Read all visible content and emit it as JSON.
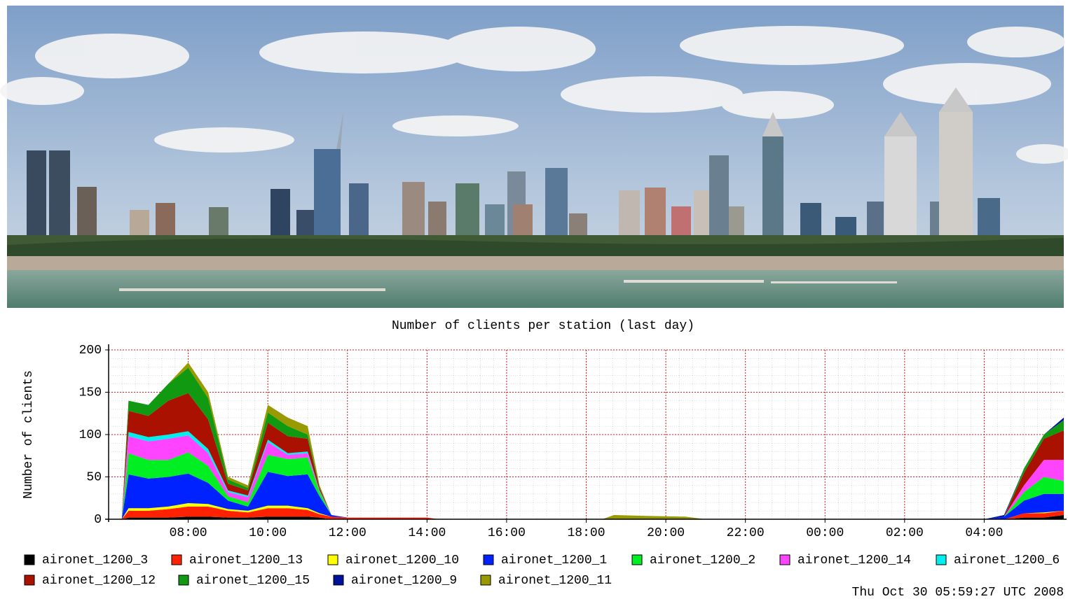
{
  "chart_data": {
    "type": "stacked-area",
    "title": "Number of clients per station (last day)",
    "y_label": "Number of clients",
    "timestamp": "Thu Oct 30 05:59:27 UTC 2008",
    "grid": true,
    "xlim": [
      6,
      30
    ],
    "ylim": [
      0,
      200
    ],
    "yticks": [
      0,
      50,
      100,
      150,
      200
    ],
    "xticks": [
      {
        "value": 8,
        "label": "08:00"
      },
      {
        "value": 10,
        "label": "10:00"
      },
      {
        "value": 12,
        "label": "12:00"
      },
      {
        "value": 14,
        "label": "14:00"
      },
      {
        "value": 16,
        "label": "16:00"
      },
      {
        "value": 18,
        "label": "18:00"
      },
      {
        "value": 20,
        "label": "20:00"
      },
      {
        "value": 22,
        "label": "22:00"
      },
      {
        "value": 24,
        "label": "00:00"
      },
      {
        "value": 26,
        "label": "02:00"
      },
      {
        "value": 28,
        "label": "04:00"
      }
    ],
    "x": [
      6.33,
      6.5,
      7,
      7.5,
      8,
      8.5,
      9,
      9.5,
      10,
      10.5,
      11,
      11.3,
      11.6,
      12,
      14,
      14.3,
      18.4,
      18.7,
      19.5,
      20.5,
      21,
      28,
      28.5,
      29,
      29.5,
      30
    ],
    "series": [
      {
        "name": "aironet_1200_3",
        "color": "#000000",
        "values": [
          0,
          2,
          2,
          2,
          3,
          3,
          2,
          2,
          3,
          3,
          3,
          2,
          0,
          0,
          0,
          0,
          0,
          0,
          0,
          0,
          0,
          0,
          0,
          2,
          2,
          5
        ]
      },
      {
        "name": "aironet_1200_13",
        "color": "#ff2200",
        "values": [
          0,
          8,
          8,
          10,
          12,
          12,
          8,
          6,
          10,
          10,
          8,
          4,
          3,
          2,
          2,
          0,
          0,
          0,
          0,
          0,
          0,
          0,
          0,
          5,
          5,
          5
        ]
      },
      {
        "name": "aironet_1200_10",
        "color": "#ffff00",
        "values": [
          0,
          3,
          3,
          3,
          4,
          3,
          2,
          2,
          3,
          3,
          2,
          1,
          0,
          0,
          0,
          0,
          0,
          0,
          0,
          0,
          0,
          0,
          0,
          0,
          1,
          0
        ]
      },
      {
        "name": "aironet_1200_1",
        "color": "#0022ff",
        "values": [
          0,
          40,
          35,
          35,
          35,
          25,
          10,
          5,
          40,
          35,
          40,
          20,
          2,
          0,
          0,
          0,
          0,
          0,
          0,
          0,
          0,
          0,
          3,
          15,
          22,
          20
        ]
      },
      {
        "name": "aironet_1200_2",
        "color": "#00ee22",
        "values": [
          0,
          25,
          22,
          20,
          25,
          20,
          5,
          5,
          20,
          20,
          20,
          5,
          0,
          0,
          0,
          0,
          0,
          0,
          0,
          0,
          0,
          0,
          0,
          10,
          20,
          15
        ]
      },
      {
        "name": "aironet_1200_14",
        "color": "#ff44ff",
        "values": [
          0,
          20,
          22,
          25,
          20,
          15,
          5,
          6,
          15,
          5,
          5,
          1,
          0,
          0,
          0,
          0,
          0,
          0,
          0,
          0,
          0,
          0,
          0,
          8,
          20,
          25
        ]
      },
      {
        "name": "aironet_1200_6",
        "color": "#00eeee",
        "values": [
          0,
          5,
          5,
          5,
          5,
          5,
          2,
          2,
          3,
          2,
          2,
          1,
          0,
          0,
          0,
          0,
          0,
          0,
          0,
          0,
          0,
          0,
          0,
          0,
          0,
          0
        ]
      },
      {
        "name": "aironet_1200_12",
        "color": "#aa1100",
        "values": [
          0,
          25,
          25,
          40,
          45,
          35,
          8,
          6,
          20,
          20,
          15,
          3,
          0,
          0,
          0,
          0,
          0,
          0,
          0,
          0,
          0,
          0,
          0,
          15,
          25,
          35
        ]
      },
      {
        "name": "aironet_1200_15",
        "color": "#119911",
        "values": [
          0,
          12,
          13,
          20,
          30,
          25,
          5,
          3,
          12,
          12,
          5,
          1,
          0,
          0,
          0,
          0,
          0,
          0,
          0,
          0,
          0,
          0,
          0,
          5,
          5,
          12
        ]
      },
      {
        "name": "aironet_1200_9",
        "color": "#001199",
        "values": [
          0,
          0,
          0,
          0,
          0,
          0,
          0,
          0,
          0,
          0,
          0,
          0,
          0,
          0,
          0,
          0,
          0,
          0,
          0,
          0,
          0,
          0,
          2,
          0,
          0,
          3
        ]
      },
      {
        "name": "aironet_1200_11",
        "color": "#999900",
        "values": [
          0,
          0,
          0,
          0,
          6,
          7,
          3,
          3,
          9,
          10,
          10,
          2,
          0,
          0,
          0,
          0,
          0,
          5,
          4,
          3,
          0,
          0,
          0,
          0,
          0,
          0
        ]
      }
    ]
  }
}
